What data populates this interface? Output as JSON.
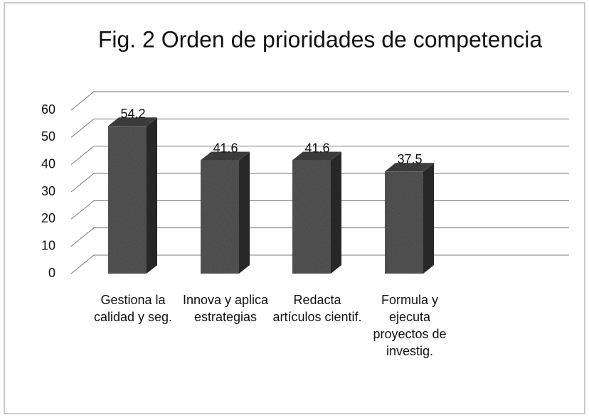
{
  "chart_data": {
    "type": "bar3d",
    "title": "Fig. 2 Orden de prioridades de competencia",
    "categories": [
      "Gestiona la calidad y seg.",
      "Innova y aplica estrategias",
      "Redacta artículos cientif.",
      "Formula y ejecuta proyectos de investig."
    ],
    "values": [
      54.2,
      41.6,
      41.6,
      37.5
    ],
    "color": "#5a5a5a",
    "ylim": [
      0,
      60
    ],
    "yticks": [
      0,
      10,
      20,
      30,
      40,
      50,
      60
    ],
    "grid": true
  }
}
